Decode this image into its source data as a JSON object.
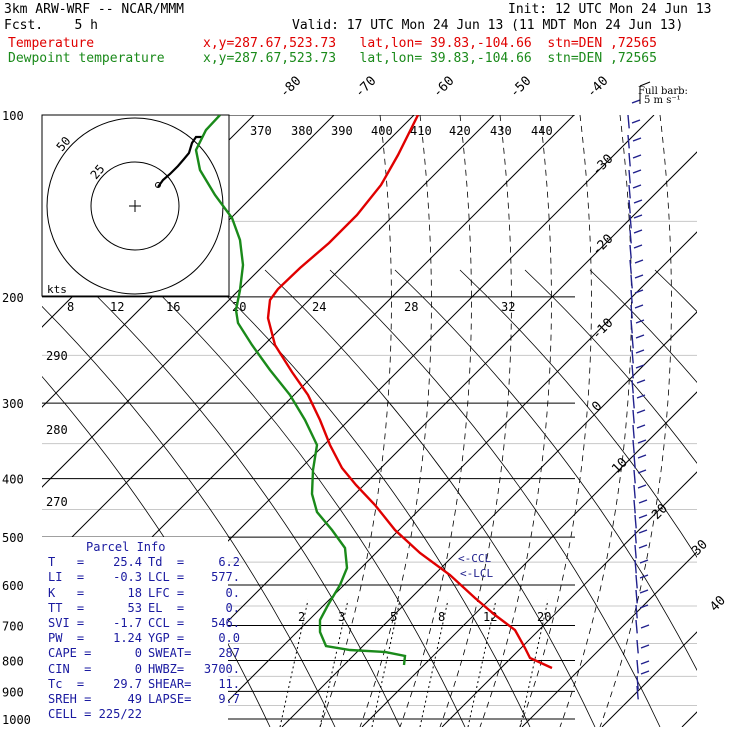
{
  "header": {
    "model": "3km ARW-WRF -- NCAR/MMM",
    "init": "Init: 12 UTC Mon 24 Jun 13",
    "fcst": "Fcst.    5 h",
    "valid": "Valid: 17 UTC Mon 24 Jun 13 (11 MDT Mon 24 Jun 13)",
    "temp_label": "Temperature",
    "temp_loc": "x,y=287.67,523.73   lat,lon= 39.83,-104.66  stn=DEN ,72565",
    "dew_label": "Dewpoint temperature",
    "dew_loc": "x,y=287.67,523.73   lat,lon= 39.83,-104.66  stn=DEN ,72565"
  },
  "colors": {
    "temperature": "#e00000",
    "dewpoint": "#1a8a1a",
    "barbs": "#20208c",
    "hodograph": "#000000"
  },
  "chart_data": {
    "type": "skew-t",
    "pressure_levels": [
      "100",
      "200",
      "300",
      "400",
      "500",
      "600",
      "700",
      "800",
      "900",
      "1000"
    ],
    "temp_axis_labels": [
      "-80",
      "-70",
      "-60",
      "-50",
      "-40",
      "-30",
      "-20",
      "-10",
      "0",
      "10",
      "20",
      "30",
      "40"
    ],
    "theta_e_labels": [
      "370",
      "380",
      "390",
      "400",
      "410",
      "420",
      "430",
      "440",
      "290",
      "280",
      "270"
    ],
    "mixing_ratio_labels": [
      "2",
      "3",
      "5",
      "8",
      "12",
      "20"
    ],
    "series": [
      {
        "name": "Temperature",
        "color": "#e00000"
      },
      {
        "name": "Dewpoint temperature",
        "color": "#1a8a1a"
      }
    ],
    "lcl_labels": [
      "<-CCL",
      "<-LCL"
    ],
    "hodograph": {
      "speed_unit": "kts",
      "ring_labels": [
        "25",
        "50"
      ],
      "axis_labels": [
        "8",
        "12",
        "16",
        "20",
        "24",
        "28",
        "32"
      ]
    },
    "barb_legend": {
      "title": "Full barb:",
      "value": "5 m s⁻¹"
    }
  },
  "parcel": {
    "title": "Parcel Info",
    "rows": [
      [
        "T   =",
        "25.4",
        "Td  =",
        "6.2"
      ],
      [
        "LI  =",
        "-0.3",
        "LCL =",
        "577."
      ],
      [
        "K   =",
        "18",
        "LFC =",
        "0."
      ],
      [
        "TT  =",
        "53",
        "EL  =",
        "0."
      ],
      [
        "SVI =",
        "-1.7",
        "CCL =",
        "546."
      ],
      [
        "PW  =",
        "1.24",
        "YGP =",
        "0.0"
      ],
      [
        "CAPE =",
        "0",
        "SWEAT=",
        "287"
      ],
      [
        "CIN  =",
        "0",
        "HWBZ=",
        "3700."
      ],
      [
        "Tc  =",
        "29.7",
        "SHEAR=",
        "11."
      ],
      [
        "SREH =",
        "49",
        "LAPSE=",
        "9.7"
      ],
      [
        "CELL =",
        "225/22",
        "",
        ""
      ]
    ]
  }
}
